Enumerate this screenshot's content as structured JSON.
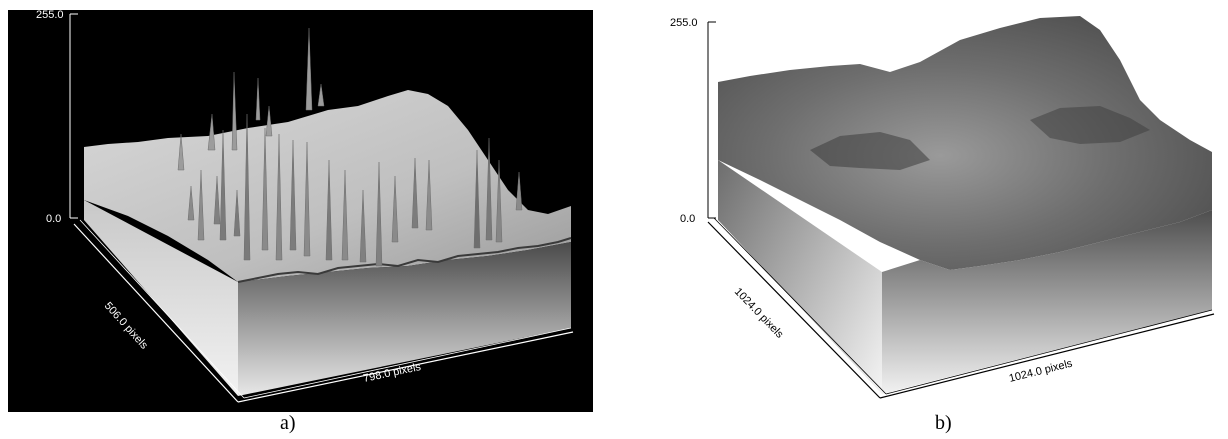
{
  "panels": [
    {
      "id": "a",
      "caption": "a)",
      "z_axis": {
        "max_label": "255.0",
        "min_label": "0.0"
      },
      "depth_axis_label": "506.0 pixels",
      "width_axis_label": "798.0 pixels",
      "background": "#000000",
      "axis_color": "#ffffff"
    },
    {
      "id": "b",
      "caption": "b)",
      "z_axis": {
        "max_label": "255.0",
        "min_label": "0.0"
      },
      "depth_axis_label": "1024.0 pixels",
      "width_axis_label": "1024.0 pixels",
      "background": "#ffffff",
      "axis_color": "#000000"
    }
  ]
}
